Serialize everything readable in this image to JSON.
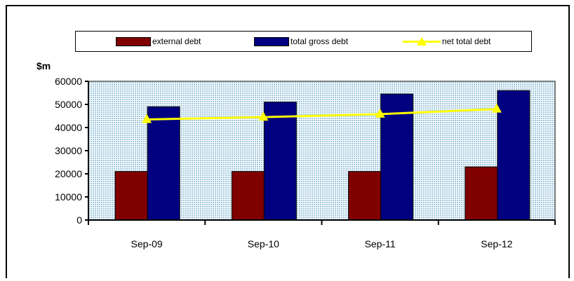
{
  "legend": {
    "items": [
      {
        "label": "external debt",
        "color": "#800000",
        "kind": "bar"
      },
      {
        "label": "total gross debt",
        "color": "#000080",
        "kind": "bar"
      },
      {
        "label": "net total debt",
        "color": "#ffff00",
        "kind": "line"
      }
    ]
  },
  "chart_data": {
    "type": "bar",
    "ylabel": "$m",
    "xlabel": "",
    "ylim": [
      0,
      60000
    ],
    "yticks": [
      "0",
      "10000",
      "20000",
      "30000",
      "40000",
      "50000",
      "60000"
    ],
    "categories": [
      "Sep-09",
      "Sep-10",
      "Sep-11",
      "Sep-12"
    ],
    "series": [
      {
        "name": "external debt",
        "type": "bar",
        "color": "#800000",
        "values": [
          21000,
          21000,
          21000,
          23000
        ]
      },
      {
        "name": "total gross debt",
        "type": "bar",
        "color": "#000080",
        "values": [
          49000,
          51000,
          54500,
          56000
        ]
      },
      {
        "name": "net total debt",
        "type": "line",
        "color": "#ffff00",
        "values": [
          43500,
          44500,
          45800,
          48000
        ]
      }
    ],
    "plot_background": "dotted light blue",
    "grid": false,
    "legend_position": "top"
  }
}
